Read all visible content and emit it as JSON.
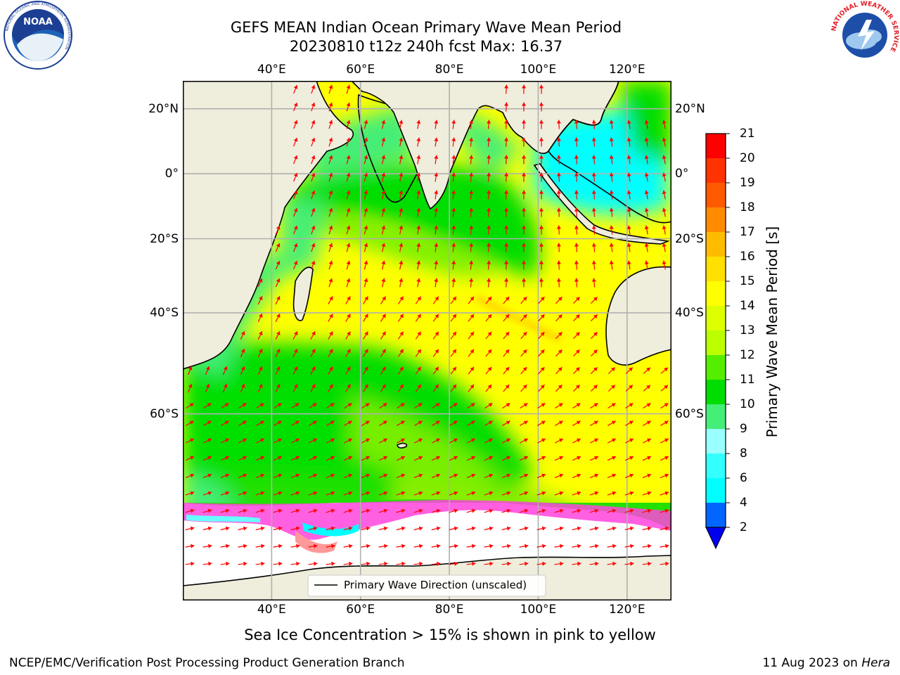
{
  "header": {
    "title_line1": "GEFS MEAN Indian Ocean Primary Wave Mean Period",
    "title_line2": "20230810 t12z 240h fcst   Max: 16.37"
  },
  "logos": {
    "noaa_text": "NOAA",
    "noaa_ring_top": "NATIONAL OCEANIC AND ATMOSPHERIC ADMINISTRATION",
    "noaa_ring_bottom": "U.S. DEPARTMENT OF COMMERCE",
    "nws_ring": "NATIONAL WEATHER SERVICE"
  },
  "map": {
    "lon_ticks": [
      "40°E",
      "60°E",
      "80°E",
      "100°E",
      "120°E"
    ],
    "lon_values": [
      40,
      60,
      80,
      100,
      120
    ],
    "lat_ticks": [
      "20°N",
      "0°",
      "20°S",
      "40°S",
      "60°S"
    ],
    "lat_values": [
      20,
      0,
      -20,
      -40,
      -60
    ],
    "extent": {
      "lon_min": 20,
      "lon_max": 130,
      "lat_min": -79,
      "lat_max": 28
    },
    "gridlines": true,
    "land_color": "#efeddc",
    "arrow_color": "#ff0000",
    "legend_text": "Primary Wave Direction (unscaled)"
  },
  "colorbar": {
    "label": "Primary Wave Mean Period [s]",
    "ticks": [
      "21",
      "20",
      "19",
      "18",
      "17",
      "16",
      "15",
      "14",
      "13",
      "12",
      "11",
      "10",
      "9",
      "8",
      "6",
      "4",
      "2"
    ],
    "colors": [
      "#0066ff",
      "#00ffff",
      "#33ffff",
      "#99ffff",
      "#44ee77",
      "#00dd00",
      "#55ee00",
      "#bbff00",
      "#ddff00",
      "#ffff00",
      "#ffe000",
      "#ffbb00",
      "#ff8c00",
      "#ff5a00",
      "#ff3300",
      "#ff0000"
    ],
    "extend_color": "#0000ee"
  },
  "caption": "Sea Ice Concentration > 15% is shown in pink to yellow",
  "footer": {
    "left": "NCEP/EMC/Verification Post Processing Product Generation Branch",
    "right_date": "11 Aug 2023 on ",
    "right_host": "Hera"
  }
}
